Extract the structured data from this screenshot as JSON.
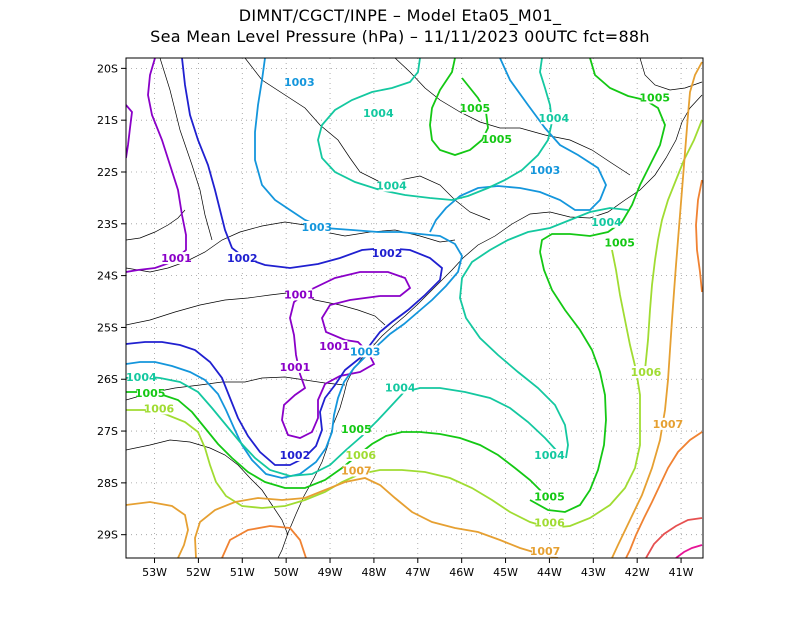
{
  "header": {
    "line1": "DIMNT/CGCT/INPE –  Model Eta05_M01_",
    "line2": "Sea Mean Level Pressure (hPa) – 11/11/2023 00UTC fct=88h"
  },
  "chart_data": {
    "type": "contour",
    "title": "Sea Mean Level Pressure (hPa)",
    "source": "DIMNT/CGCT/INPE",
    "model": "Eta05_M01_",
    "run": "11/11/2023 00UTC",
    "forecast": "fct=88h",
    "units": "hPa",
    "xlim": [
      -53.65,
      -40.5
    ],
    "ylim": [
      -29.45,
      -19.8
    ],
    "grid": true,
    "x_ticks": [
      -53,
      -52,
      -51,
      -50,
      -49,
      -48,
      -47,
      -46,
      -45,
      -44,
      -43,
      -42,
      -41
    ],
    "x_tick_labels": [
      "53W",
      "52W",
      "51W",
      "50W",
      "49W",
      "48W",
      "47W",
      "46W",
      "45W",
      "44W",
      "43W",
      "42W",
      "41W"
    ],
    "y_ticks": [
      -20,
      -21,
      -22,
      -23,
      -24,
      -25,
      -26,
      -27,
      -28,
      -29
    ],
    "y_tick_labels": [
      "20S",
      "21S",
      "22S",
      "23S",
      "24S",
      "25S",
      "26S",
      "27S",
      "28S",
      "29S"
    ],
    "levels": [
      {
        "value": 1001,
        "color": "#8a00c8"
      },
      {
        "value": 1002,
        "color": "#2020d0"
      },
      {
        "value": 1003,
        "color": "#1496dc"
      },
      {
        "value": 1004,
        "color": "#14c8a0"
      },
      {
        "value": 1005,
        "color": "#14c814"
      },
      {
        "value": 1006,
        "color": "#a0dc32"
      },
      {
        "value": 1007,
        "color": "#e6a032"
      },
      {
        "value": 1008,
        "color": "#f08232"
      },
      {
        "value": 1009,
        "color": "#e65050"
      },
      {
        "value": 1010,
        "color": "#e61496"
      }
    ],
    "contour_labels": [
      {
        "text": "1003",
        "lon": -49.7,
        "lat": -20.3,
        "color": "#1496dc"
      },
      {
        "text": "1004",
        "lon": -47.9,
        "lat": -20.9,
        "color": "#14c8a0"
      },
      {
        "text": "1005",
        "lon": -45.7,
        "lat": -20.8,
        "color": "#14c814"
      },
      {
        "text": "1004",
        "lon": -43.9,
        "lat": -21.0,
        "color": "#14c8a0"
      },
      {
        "text": "1005",
        "lon": -41.6,
        "lat": -20.6,
        "color": "#14c814"
      },
      {
        "text": "1005",
        "lon": -45.2,
        "lat": -21.4,
        "color": "#14c814"
      },
      {
        "text": "1003",
        "lon": -44.1,
        "lat": -22.0,
        "color": "#1496dc"
      },
      {
        "text": "1004",
        "lon": -47.6,
        "lat": -22.3,
        "color": "#14c8a0"
      },
      {
        "text": "1004",
        "lon": -42.7,
        "lat": -23.0,
        "color": "#14c8a0"
      },
      {
        "text": "1005",
        "lon": -42.4,
        "lat": -23.4,
        "color": "#14c814"
      },
      {
        "text": "1003",
        "lon": -49.3,
        "lat": -23.1,
        "color": "#1496dc"
      },
      {
        "text": "1002",
        "lon": -47.7,
        "lat": -23.6,
        "color": "#2020d0"
      },
      {
        "text": "1001",
        "lon": -52.5,
        "lat": -23.7,
        "color": "#8a00c8"
      },
      {
        "text": "1002",
        "lon": -51.0,
        "lat": -23.7,
        "color": "#2020d0"
      },
      {
        "text": "1001",
        "lon": -49.7,
        "lat": -24.4,
        "color": "#8a00c8"
      },
      {
        "text": "1001",
        "lon": -48.9,
        "lat": -25.4,
        "color": "#8a00c8"
      },
      {
        "text": "1003",
        "lon": -48.2,
        "lat": -25.5,
        "color": "#1496dc"
      },
      {
        "text": "1001",
        "lon": -49.8,
        "lat": -25.8,
        "color": "#8a00c8"
      },
      {
        "text": "1004",
        "lon": -53.3,
        "lat": -26.0,
        "color": "#14c8a0"
      },
      {
        "text": "1004",
        "lon": -47.4,
        "lat": -26.2,
        "color": "#14c8a0"
      },
      {
        "text": "1006",
        "lon": -41.8,
        "lat": -25.9,
        "color": "#a0dc32"
      },
      {
        "text": "1005",
        "lon": -53.1,
        "lat": -26.3,
        "color": "#14c814"
      },
      {
        "text": "1006",
        "lon": -52.9,
        "lat": -26.6,
        "color": "#a0dc32"
      },
      {
        "text": "1005",
        "lon": -48.4,
        "lat": -27.0,
        "color": "#14c814"
      },
      {
        "text": "1007",
        "lon": -41.3,
        "lat": -26.9,
        "color": "#e6a032"
      },
      {
        "text": "1002",
        "lon": -49.8,
        "lat": -27.5,
        "color": "#2020d0"
      },
      {
        "text": "1006",
        "lon": -48.3,
        "lat": -27.5,
        "color": "#a0dc32"
      },
      {
        "text": "1004",
        "lon": -44.0,
        "lat": -27.5,
        "color": "#14c8a0"
      },
      {
        "text": "1007",
        "lon": -48.4,
        "lat": -27.8,
        "color": "#e6a032"
      },
      {
        "text": "1005",
        "lon": -44.0,
        "lat": -28.3,
        "color": "#14c814"
      },
      {
        "text": "1006",
        "lon": -44.0,
        "lat": -28.8,
        "color": "#a0dc32"
      },
      {
        "text": "1007",
        "lon": -44.1,
        "lat": -29.35,
        "color": "#e6a032"
      }
    ]
  }
}
